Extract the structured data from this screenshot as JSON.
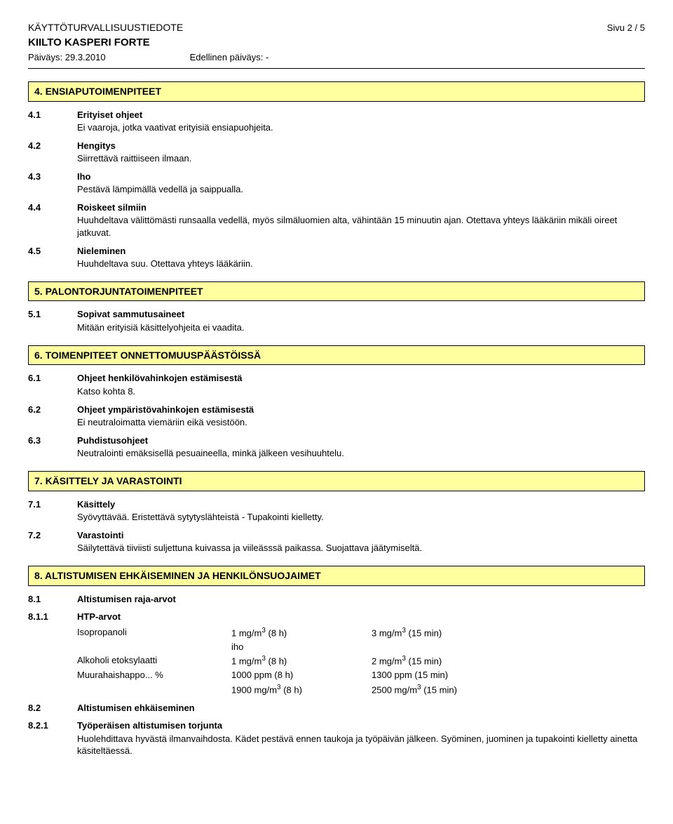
{
  "header": {
    "doc_title": "KÄYTTÖTURVALLISUUSTIEDOTE",
    "page_label": "Sivu 2 / 5",
    "product": "KIILTO KASPERI FORTE",
    "date_label": "Päiväys: 29.3.2010",
    "prev_date_label": "Edellinen päiväys: -"
  },
  "sections": {
    "s4": {
      "heading": "4. ENSIAPUTOIMENPITEET",
      "items": [
        {
          "num": "4.1",
          "label": "Erityiset ohjeet",
          "text": "Ei vaaroja, jotka vaativat erityisiä ensiapuohjeita."
        },
        {
          "num": "4.2",
          "label": "Hengitys",
          "text": "Siirrettävä raittiiseen ilmaan."
        },
        {
          "num": "4.3",
          "label": "Iho",
          "text": "Pestävä lämpimällä vedellä ja saippualla."
        },
        {
          "num": "4.4",
          "label": "Roiskeet silmiin",
          "text": "Huuhdeltava välittömästi runsaalla vedellä, myös silmäluomien alta, vähintään 15 minuutin ajan. Otettava yhteys lääkäriin mikäli oireet jatkuvat."
        },
        {
          "num": "4.5",
          "label": "Nieleminen",
          "text": "Huuhdeltava suu. Otettava yhteys lääkäriin."
        }
      ]
    },
    "s5": {
      "heading": "5. PALONTORJUNTATOIMENPITEET",
      "items": [
        {
          "num": "5.1",
          "label": "Sopivat sammutusaineet",
          "text": "Mitään erityisiä käsittelyohjeita ei vaadita."
        }
      ]
    },
    "s6": {
      "heading": "6. TOIMENPITEET ONNETTOMUUSPÄÄSTÖISSÄ",
      "items": [
        {
          "num": "6.1",
          "label": "Ohjeet henkilövahinkojen estämisestä",
          "text": "Katso kohta  8."
        },
        {
          "num": "6.2",
          "label": "Ohjeet ympäristövahinkojen estämisestä",
          "text": "Ei neutraloimatta viemäriin eikä vesistöön."
        },
        {
          "num": "6.3",
          "label": "Puhdistusohjeet",
          "text": "Neutralointi emäksisellä pesuaineella, minkä jälkeen vesihuuhtelu."
        }
      ]
    },
    "s7": {
      "heading": "7. KÄSITTELY JA VARASTOINTI",
      "items": [
        {
          "num": "7.1",
          "label": "Käsittely",
          "text": "Syövyttävää.  Eristettävä sytytyslähteistä - Tupakointi kielletty."
        },
        {
          "num": "7.2",
          "label": "Varastointi",
          "text": "Säilytettävä tiiviisti suljettuna kuivassa ja viileässsä paikassa.  Suojattava jäätymiseltä."
        }
      ]
    },
    "s8": {
      "heading": "8. ALTISTUMISEN EHKÄISEMINEN JA HENKILÖNSUOJAIMET",
      "i81": {
        "num": "8.1",
        "label": "Altistumisen raja-arvot"
      },
      "i811": {
        "num": "8.1.1",
        "label": "HTP-arvot"
      },
      "exposure": [
        {
          "name": "Isopropanoli",
          "v1": "1 mg/m",
          "v1_exp": "3",
          "v1_tail": " (8 h)",
          "v2": "3 mg/m",
          "v2_exp": "3",
          "v2_tail": " (15 min)"
        },
        {
          "name": "",
          "v1": "iho",
          "v1_exp": "",
          "v1_tail": "",
          "v2": "",
          "v2_exp": "",
          "v2_tail": ""
        },
        {
          "name": "Alkoholi etoksylaatti",
          "v1": "1 mg/m",
          "v1_exp": "3",
          "v1_tail": " (8 h)",
          "v2": "2 mg/m",
          "v2_exp": "3",
          "v2_tail": " (15 min)"
        },
        {
          "name": "Muurahaishappo... %",
          "v1": "1000 ppm (8 h)",
          "v1_exp": "",
          "v1_tail": "",
          "v2": "1300 ppm (15 min)",
          "v2_exp": "",
          "v2_tail": ""
        },
        {
          "name": "",
          "v1": "1900 mg/m",
          "v1_exp": "3",
          "v1_tail": " (8 h)",
          "v2": "2500 mg/m",
          "v2_exp": "3",
          "v2_tail": " (15 min)"
        }
      ],
      "i82": {
        "num": "8.2",
        "label": "Altistumisen ehkäiseminen"
      },
      "i821": {
        "num": "8.2.1",
        "label": "Työperäisen altistumisen torjunta",
        "text": "Huolehdittava hyvästä ilmanvaihdosta.  Kädet pestävä ennen taukoja ja työpäivän jälkeen.  Syöminen, juominen ja tupakointi kielletty ainetta käsiteltäessä."
      }
    }
  }
}
